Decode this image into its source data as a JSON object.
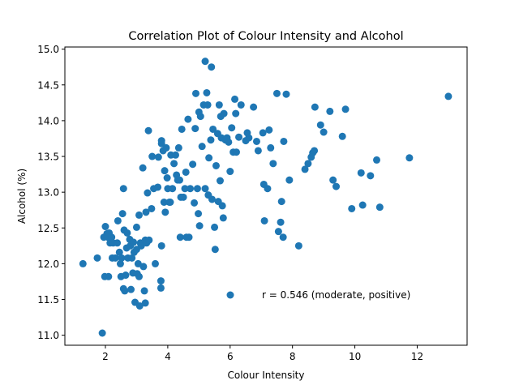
{
  "chart_data": {
    "type": "scatter",
    "title": "Correlation Plot of Colour Intensity and Alcohol",
    "xlabel": "Colour Intensity",
    "ylabel": "Alcohol (%)",
    "xlim": [
      0.7,
      13.6
    ],
    "ylim": [
      10.86,
      15.03
    ],
    "xticks": [
      2,
      4,
      6,
      8,
      10,
      12
    ],
    "xtick_labels": [
      "2",
      "4",
      "6",
      "8",
      "10",
      "12"
    ],
    "yticks": [
      11.0,
      11.5,
      12.0,
      12.5,
      13.0,
      13.5,
      14.0,
      14.5,
      15.0
    ],
    "ytick_labels": [
      "11.0",
      "11.5",
      "12.0",
      "12.5",
      "13.0",
      "13.5",
      "14.0",
      "14.5",
      "15.0"
    ],
    "grid": false,
    "marker_color": "#1f77b4",
    "annotation": "r = 0.546 (moderate, positive)",
    "series": [
      {
        "points": [
          [
            1.28,
            12.0
          ],
          [
            1.74,
            12.08
          ],
          [
            1.9,
            11.03
          ],
          [
            1.95,
            12.37
          ],
          [
            1.98,
            11.82
          ],
          [
            2.0,
            12.52
          ],
          [
            2.05,
            12.42
          ],
          [
            2.08,
            12.37
          ],
          [
            2.1,
            11.82
          ],
          [
            2.12,
            12.43
          ],
          [
            2.15,
            12.29
          ],
          [
            2.2,
            12.37
          ],
          [
            2.22,
            12.08
          ],
          [
            2.25,
            12.29
          ],
          [
            2.32,
            12.08
          ],
          [
            2.38,
            12.29
          ],
          [
            2.4,
            12.6
          ],
          [
            2.45,
            12.16
          ],
          [
            2.48,
            12.0
          ],
          [
            2.5,
            11.82
          ],
          [
            2.52,
            12.08
          ],
          [
            2.55,
            12.7
          ],
          [
            2.58,
            11.65
          ],
          [
            2.58,
            13.05
          ],
          [
            2.6,
            12.47
          ],
          [
            2.62,
            11.62
          ],
          [
            2.65,
            11.84
          ],
          [
            2.68,
            12.22
          ],
          [
            2.7,
            12.43
          ],
          [
            2.72,
            12.08
          ],
          [
            2.78,
            12.34
          ],
          [
            2.8,
            12.25
          ],
          [
            2.82,
            11.64
          ],
          [
            2.85,
            12.08
          ],
          [
            2.88,
            11.87
          ],
          [
            2.9,
            12.3
          ],
          [
            2.92,
            12.16
          ],
          [
            2.95,
            11.46
          ],
          [
            3.0,
            12.51
          ],
          [
            3.0,
            12.2
          ],
          [
            3.02,
            11.86
          ],
          [
            3.05,
            12.0
          ],
          [
            3.08,
            11.82
          ],
          [
            3.08,
            12.68
          ],
          [
            3.1,
            11.41
          ],
          [
            3.12,
            12.29
          ],
          [
            3.15,
            12.25
          ],
          [
            3.2,
            13.34
          ],
          [
            3.22,
            11.96
          ],
          [
            3.25,
            11.62
          ],
          [
            3.28,
            11.45
          ],
          [
            3.28,
            12.33
          ],
          [
            3.3,
            12.72
          ],
          [
            3.32,
            12.29
          ],
          [
            3.35,
            12.99
          ],
          [
            3.38,
            13.86
          ],
          [
            3.4,
            12.33
          ],
          [
            3.48,
            12.77
          ],
          [
            3.5,
            13.5
          ],
          [
            3.55,
            13.05
          ],
          [
            3.6,
            12.0
          ],
          [
            3.68,
            13.07
          ],
          [
            3.7,
            13.49
          ],
          [
            3.78,
            11.76
          ],
          [
            3.78,
            11.66
          ],
          [
            3.8,
            13.72
          ],
          [
            3.8,
            13.68
          ],
          [
            3.8,
            12.25
          ],
          [
            3.85,
            13.58
          ],
          [
            3.88,
            12.86
          ],
          [
            3.9,
            13.3
          ],
          [
            3.92,
            12.72
          ],
          [
            3.95,
            13.62
          ],
          [
            3.98,
            13.2
          ],
          [
            4.0,
            13.05
          ],
          [
            4.05,
            12.86
          ],
          [
            4.08,
            12.86
          ],
          [
            4.1,
            13.52
          ],
          [
            4.15,
            13.05
          ],
          [
            4.2,
            13.4
          ],
          [
            4.25,
            13.52
          ],
          [
            4.28,
            13.24
          ],
          [
            4.32,
            13.17
          ],
          [
            4.35,
            13.62
          ],
          [
            4.38,
            13.17
          ],
          [
            4.4,
            12.37
          ],
          [
            4.42,
            12.93
          ],
          [
            4.45,
            13.88
          ],
          [
            4.5,
            12.93
          ],
          [
            4.55,
            13.05
          ],
          [
            4.58,
            13.28
          ],
          [
            4.6,
            12.37
          ],
          [
            4.65,
            14.02
          ],
          [
            4.68,
            12.37
          ],
          [
            4.72,
            13.05
          ],
          [
            4.8,
            13.39
          ],
          [
            4.85,
            12.85
          ],
          [
            4.88,
            13.89
          ],
          [
            4.9,
            14.38
          ],
          [
            4.95,
            13.05
          ],
          [
            4.98,
            12.7
          ],
          [
            5.0,
            14.12
          ],
          [
            5.02,
            12.53
          ],
          [
            5.05,
            14.06
          ],
          [
            5.1,
            13.64
          ],
          [
            5.15,
            14.22
          ],
          [
            5.2,
            14.83
          ],
          [
            5.2,
            13.05
          ],
          [
            5.25,
            14.39
          ],
          [
            5.28,
            14.22
          ],
          [
            5.3,
            12.96
          ],
          [
            5.32,
            13.48
          ],
          [
            5.38,
            13.73
          ],
          [
            5.4,
            14.75
          ],
          [
            5.42,
            12.9
          ],
          [
            5.45,
            13.88
          ],
          [
            5.5,
            12.51
          ],
          [
            5.52,
            12.2
          ],
          [
            5.55,
            13.37
          ],
          [
            5.6,
            13.82
          ],
          [
            5.62,
            12.87
          ],
          [
            5.65,
            14.22
          ],
          [
            5.68,
            13.16
          ],
          [
            5.7,
            14.06
          ],
          [
            5.72,
            13.76
          ],
          [
            5.75,
            12.81
          ],
          [
            5.78,
            12.64
          ],
          [
            5.8,
            14.1
          ],
          [
            5.85,
            13.73
          ],
          [
            5.9,
            13.76
          ],
          [
            5.95,
            13.7
          ],
          [
            6.0,
            13.29
          ],
          [
            6.05,
            13.9
          ],
          [
            6.1,
            13.56
          ],
          [
            6.15,
            14.3
          ],
          [
            6.18,
            14.1
          ],
          [
            6.2,
            13.56
          ],
          [
            6.28,
            13.77
          ],
          [
            6.35,
            14.22
          ],
          [
            6.5,
            13.72
          ],
          [
            6.55,
            13.83
          ],
          [
            6.6,
            13.76
          ],
          [
            6.75,
            14.19
          ],
          [
            6.85,
            13.71
          ],
          [
            6.9,
            13.58
          ],
          [
            7.05,
            13.83
          ],
          [
            7.08,
            13.11
          ],
          [
            7.1,
            12.6
          ],
          [
            7.2,
            13.05
          ],
          [
            7.25,
            13.87
          ],
          [
            7.3,
            13.62
          ],
          [
            7.38,
            13.4
          ],
          [
            7.5,
            14.38
          ],
          [
            7.55,
            12.45
          ],
          [
            7.62,
            12.58
          ],
          [
            7.65,
            12.87
          ],
          [
            7.7,
            12.37
          ],
          [
            7.72,
            13.71
          ],
          [
            7.8,
            14.37
          ],
          [
            7.9,
            13.17
          ],
          [
            8.2,
            12.25
          ],
          [
            8.4,
            13.32
          ],
          [
            8.5,
            13.4
          ],
          [
            8.6,
            13.49
          ],
          [
            8.65,
            13.55
          ],
          [
            8.7,
            13.58
          ],
          [
            8.72,
            14.19
          ],
          [
            8.9,
            13.94
          ],
          [
            9.0,
            13.84
          ],
          [
            9.2,
            14.13
          ],
          [
            9.3,
            13.17
          ],
          [
            9.4,
            13.08
          ],
          [
            9.6,
            13.78
          ],
          [
            9.7,
            14.16
          ],
          [
            9.9,
            12.77
          ],
          [
            10.2,
            13.27
          ],
          [
            10.25,
            12.82
          ],
          [
            10.5,
            13.23
          ],
          [
            10.7,
            13.45
          ],
          [
            10.8,
            12.79
          ],
          [
            11.75,
            13.48
          ],
          [
            13.0,
            14.34
          ]
        ]
      }
    ]
  }
}
